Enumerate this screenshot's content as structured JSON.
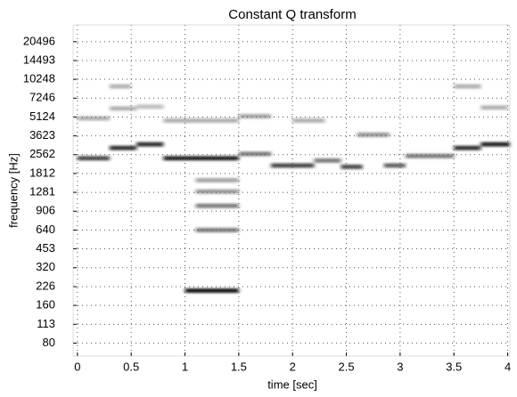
{
  "chart_data": {
    "type": "spectrogram",
    "title": "Constant Q transform",
    "x_label": "time [sec]",
    "y_label": "frequency [Hz]",
    "xlim": [
      -0.04,
      4.02
    ],
    "xticks": [
      0,
      0.5,
      1,
      1.5,
      2,
      2.5,
      3,
      3.5,
      4
    ],
    "ylim": [
      63,
      27900
    ],
    "ylog": true,
    "yticks": [
      80,
      113,
      160,
      226,
      320,
      453,
      640,
      906,
      1281,
      1812,
      2562,
      3623,
      5124,
      7246,
      10248,
      14493,
      20496
    ],
    "grid": true,
    "color": "#000000",
    "segments": [
      {
        "t": [
          0,
          0.3
        ],
        "f": 2400,
        "level": 0.7
      },
      {
        "t": [
          0.3,
          0.55
        ],
        "f": 2900,
        "level": 0.8
      },
      {
        "t": [
          0.55,
          0.8
        ],
        "f": 3100,
        "level": 0.8
      },
      {
        "t": [
          0.8,
          1.5
        ],
        "f": 2400,
        "level": 0.85
      },
      {
        "t": [
          1.0,
          1.5
        ],
        "f": 210,
        "level": 0.9
      },
      {
        "t": [
          1.1,
          1.5
        ],
        "f": 640,
        "level": 0.5
      },
      {
        "t": [
          1.1,
          1.5
        ],
        "f": 1000,
        "level": 0.5
      },
      {
        "t": [
          1.1,
          1.5
        ],
        "f": 1300,
        "level": 0.4
      },
      {
        "t": [
          1.1,
          1.5
        ],
        "f": 1600,
        "level": 0.35
      },
      {
        "t": [
          0.8,
          1.5
        ],
        "f": 4800,
        "level": 0.3
      },
      {
        "t": [
          1.5,
          1.8
        ],
        "f": 2600,
        "level": 0.5
      },
      {
        "t": [
          1.8,
          2.2
        ],
        "f": 2100,
        "level": 0.7
      },
      {
        "t": [
          2.2,
          2.45
        ],
        "f": 2300,
        "level": 0.5
      },
      {
        "t": [
          2.45,
          2.65
        ],
        "f": 2050,
        "level": 0.7
      },
      {
        "t": [
          2.6,
          2.9
        ],
        "f": 3700,
        "level": 0.4
      },
      {
        "t": [
          2.85,
          3.05
        ],
        "f": 2100,
        "level": 0.6
      },
      {
        "t": [
          3.05,
          3.5
        ],
        "f": 2500,
        "level": 0.5
      },
      {
        "t": [
          3.5,
          3.75
        ],
        "f": 2900,
        "level": 0.8
      },
      {
        "t": [
          3.75,
          4.02
        ],
        "f": 3100,
        "level": 0.85
      },
      {
        "t": [
          0,
          0.3
        ],
        "f": 5000,
        "level": 0.3
      },
      {
        "t": [
          0.3,
          0.55
        ],
        "f": 6000,
        "level": 0.3
      },
      {
        "t": [
          0.55,
          0.8
        ],
        "f": 6200,
        "level": 0.25
      },
      {
        "t": [
          3.5,
          3.75
        ],
        "f": 9000,
        "level": 0.3
      },
      {
        "t": [
          0.3,
          0.5
        ],
        "f": 9000,
        "level": 0.3
      },
      {
        "t": [
          1.5,
          1.8
        ],
        "f": 5200,
        "level": 0.35
      },
      {
        "t": [
          2.0,
          2.3
        ],
        "f": 4800,
        "level": 0.3
      },
      {
        "t": [
          3.75,
          4.0
        ],
        "f": 6100,
        "level": 0.3
      }
    ]
  }
}
